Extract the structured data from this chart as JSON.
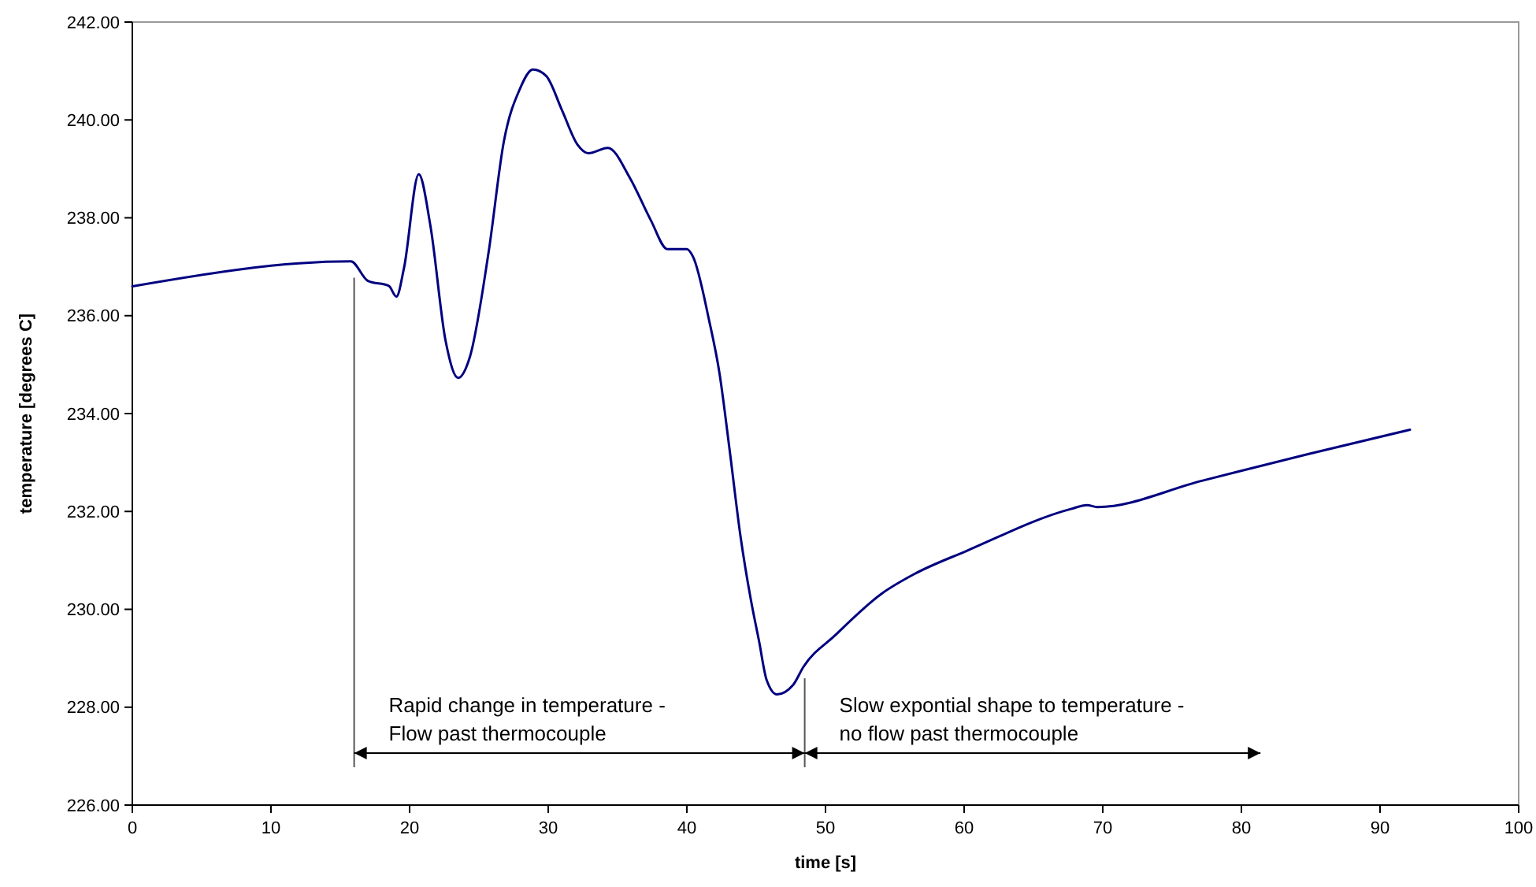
{
  "chart_data": {
    "type": "line",
    "xlabel": "time [s]",
    "ylabel": "temperature [degrees C]",
    "xlim": [
      0,
      100
    ],
    "xticks": [
      0,
      10,
      20,
      30,
      40,
      50,
      60,
      70,
      80,
      90,
      100
    ],
    "ylim": [
      226,
      242
    ],
    "yticks": [
      {
        "value": 226,
        "label": "226.00"
      },
      {
        "value": 228,
        "label": "228.00"
      },
      {
        "value": 230,
        "label": "230.00"
      },
      {
        "value": 232,
        "label": "232.00"
      },
      {
        "value": 234,
        "label": "234.00"
      },
      {
        "value": 236,
        "label": "236.00"
      },
      {
        "value": 238,
        "label": "238.00"
      },
      {
        "value": 240,
        "label": "240.00"
      },
      {
        "value": 242,
        "label": "242.00"
      }
    ],
    "grid": false,
    "marker": "none",
    "line_style": "solid",
    "series": [
      {
        "color": "#000080",
        "x": [
          0,
          15.76,
          17.0,
          18.5,
          19.05,
          19.6,
          20.66,
          21.5,
          22.6,
          23.5,
          24.35,
          25.7,
          26.8,
          27.95,
          28.9,
          29.85,
          30.99,
          32.1,
          32.9,
          34.3,
          35.9,
          37.4,
          38.6,
          40.0,
          40.45,
          41.6,
          42.35,
          43.1,
          43.86,
          44.6,
          45.2,
          45.76,
          46.5,
          47.65,
          48.4,
          50.7,
          54.1,
          56.4,
          60.15,
          67.7,
          68.86,
          69.6,
          77.2,
          84.8,
          92.16
        ],
        "values": [
          236.6,
          237.11,
          236.71,
          236.61,
          236.39,
          236.98,
          238.89,
          237.84,
          235.48,
          234.73,
          235.16,
          237.3,
          239.56,
          240.63,
          241.03,
          240.9,
          240.2,
          239.5,
          239.32,
          239.43,
          238.81,
          237.95,
          237.36,
          237.36,
          237.2,
          235.91,
          234.83,
          233.22,
          231.51,
          230.22,
          229.36,
          228.55,
          228.26,
          228.45,
          228.82,
          229.47,
          230.33,
          230.72,
          231.19,
          232.05,
          232.13,
          232.09,
          232.63,
          233.17,
          233.67
        ]
      }
    ],
    "ref_lines": [
      {
        "axis": "x",
        "value": 16,
        "color": "#555555"
      },
      {
        "axis": "x",
        "value": 48.5,
        "color": "#555555"
      }
    ],
    "annotations": [
      "Rapid change in temperature -\nFlow past thermocouple",
      "Slow expontial shape to temperature -\nno flow past thermocouple"
    ]
  }
}
